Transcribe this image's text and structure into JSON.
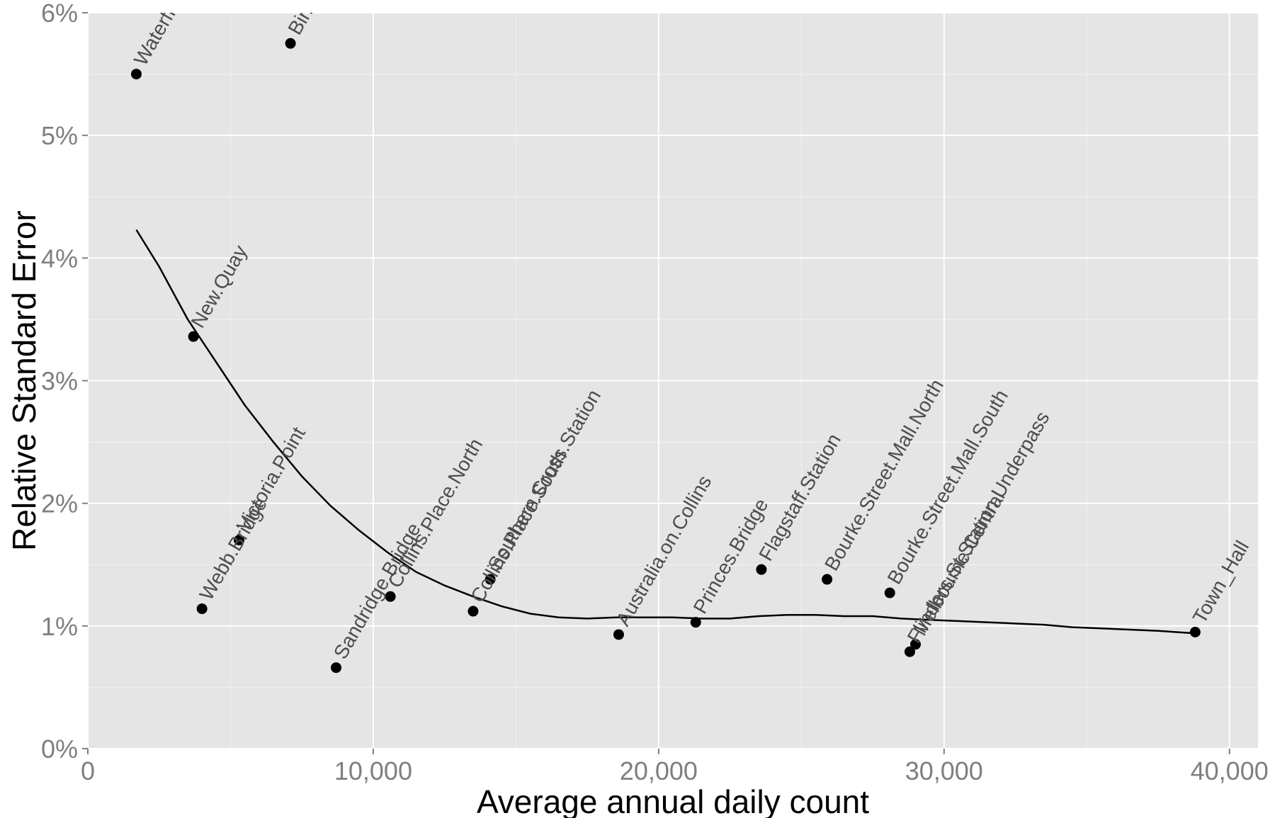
{
  "chart_data": {
    "type": "scatter",
    "title": "",
    "xlabel": "Average annual daily count",
    "ylabel": "Relative Standard Error",
    "xlim": [
      0,
      41000
    ],
    "ylim": [
      0,
      6
    ],
    "x_ticks": [
      0,
      10000,
      20000,
      30000,
      40000
    ],
    "x_tick_labels": [
      "0",
      "10,000",
      "20,000",
      "30,000",
      "40,000"
    ],
    "y_ticks": [
      0,
      1,
      2,
      3,
      4,
      5,
      6
    ],
    "y_tick_labels": [
      "0%",
      "1%",
      "2%",
      "3%",
      "4%",
      "5%",
      "6%"
    ],
    "grid": true,
    "panel_background": "#e5e5e5",
    "grid_color": "#ffffff",
    "point_color": "#000000",
    "smooth_color": "#000000",
    "series": [
      {
        "points": [
          {
            "x": 1700,
            "y": 5.5,
            "label": "Waterfront"
          },
          {
            "x": 7100,
            "y": 5.75,
            "label": "Birrarung"
          },
          {
            "x": 3700,
            "y": 3.36,
            "label": "New.Quay"
          },
          {
            "x": 5300,
            "y": 1.7,
            "label": "Victoria.Point"
          },
          {
            "x": 4000,
            "y": 1.14,
            "label": "Webb.Bridge"
          },
          {
            "x": 8700,
            "y": 0.66,
            "label": "Sandridge.Bridge"
          },
          {
            "x": 10600,
            "y": 1.24,
            "label": "Collins.Place.North"
          },
          {
            "x": 13500,
            "y": 1.12,
            "label": "Collins.Place.South"
          },
          {
            "x": 14100,
            "y": 1.38,
            "label": "Southern.Cross.Station"
          },
          {
            "x": 18600,
            "y": 0.93,
            "label": "Australia.on.Collins"
          },
          {
            "x": 21300,
            "y": 1.03,
            "label": "Princes.Bridge"
          },
          {
            "x": 23600,
            "y": 1.46,
            "label": "Flagstaff.Station"
          },
          {
            "x": 25900,
            "y": 1.38,
            "label": "Bourke.Street.Mall.North"
          },
          {
            "x": 28100,
            "y": 1.27,
            "label": "Bourke.Street.Mall.South"
          },
          {
            "x": 28800,
            "y": 0.79,
            "label": "Flinders.St.Station.Underpass"
          },
          {
            "x": 29000,
            "y": 0.85,
            "label": "Melbourne.Central"
          },
          {
            "x": 38800,
            "y": 0.95,
            "label": "Town_Hall"
          }
        ]
      }
    ],
    "smooth_curve": [
      [
        1700,
        4.23
      ],
      [
        2500,
        3.93
      ],
      [
        3500,
        3.5
      ],
      [
        4500,
        3.15
      ],
      [
        5500,
        2.8
      ],
      [
        6500,
        2.5
      ],
      [
        7500,
        2.22
      ],
      [
        8500,
        1.98
      ],
      [
        9500,
        1.78
      ],
      [
        10500,
        1.6
      ],
      [
        11500,
        1.44
      ],
      [
        12500,
        1.33
      ],
      [
        13500,
        1.24
      ],
      [
        14500,
        1.16
      ],
      [
        15500,
        1.1
      ],
      [
        16500,
        1.07
      ],
      [
        17500,
        1.06
      ],
      [
        18500,
        1.07
      ],
      [
        19500,
        1.07
      ],
      [
        20500,
        1.07
      ],
      [
        21500,
        1.06
      ],
      [
        22500,
        1.06
      ],
      [
        23500,
        1.08
      ],
      [
        24500,
        1.09
      ],
      [
        25500,
        1.09
      ],
      [
        26500,
        1.08
      ],
      [
        27500,
        1.08
      ],
      [
        28500,
        1.06
      ],
      [
        29500,
        1.05
      ],
      [
        30500,
        1.04
      ],
      [
        31500,
        1.03
      ],
      [
        32500,
        1.02
      ],
      [
        33500,
        1.01
      ],
      [
        34500,
        0.99
      ],
      [
        35500,
        0.98
      ],
      [
        36500,
        0.97
      ],
      [
        37500,
        0.96
      ],
      [
        38800,
        0.94
      ]
    ]
  }
}
